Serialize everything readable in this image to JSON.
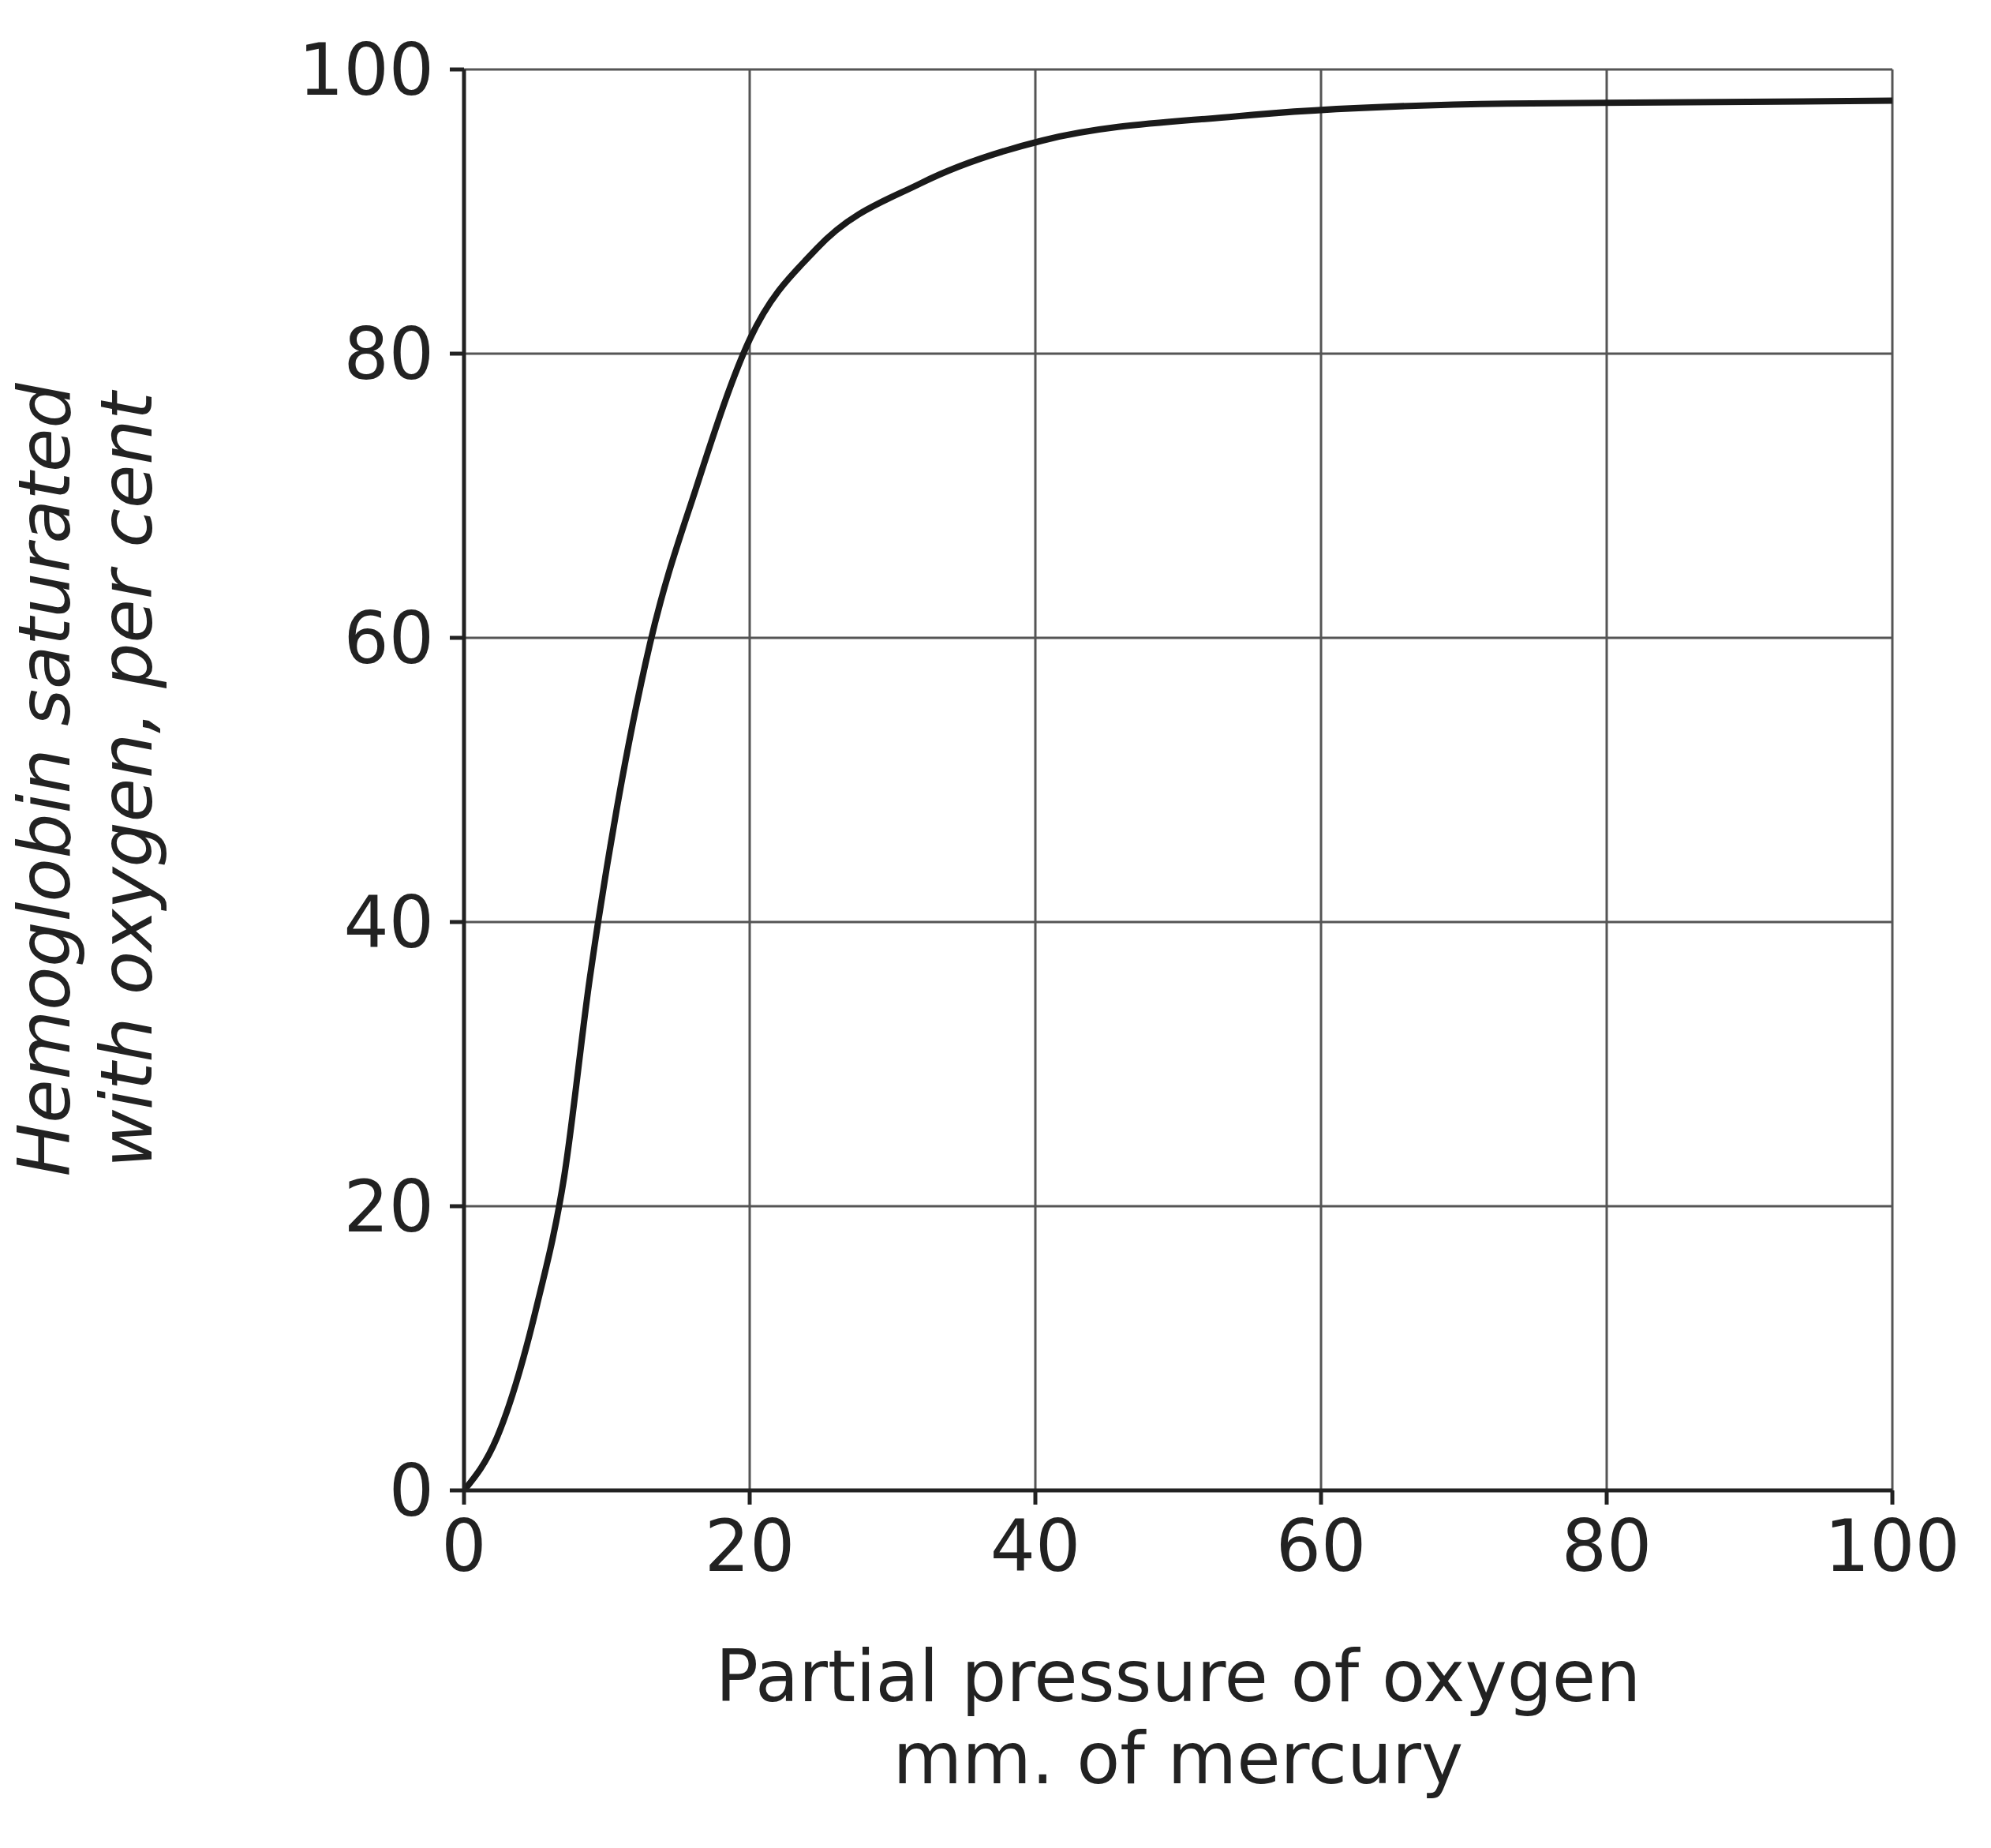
{
  "chart_data": {
    "type": "line",
    "xlabel": "Partial pressure of oxygen\nmm. of mercury",
    "ylabel": "Hemoglobin saturated\nwith oxygen, per cent",
    "x": [
      0,
      2.3,
      5.1,
      7,
      8.8,
      10.7,
      13,
      16.3,
      20,
      24.7,
      32,
      40.5,
      54,
      73,
      100
    ],
    "series": [
      {
        "color": "#1a1a1a",
        "values": [
          0,
          3.7,
          13,
          22,
          36,
          48,
          59.5,
          70.7,
          81,
          87.4,
          92,
          95,
          96.7,
          97.6,
          97.8
        ]
      }
    ],
    "xlim": [
      0,
      100
    ],
    "ylim": [
      0,
      100
    ],
    "xticks": [
      0,
      20,
      40,
      60,
      80,
      100
    ],
    "yticks": [
      0,
      20,
      40,
      60,
      80,
      100
    ],
    "grid": true,
    "marker": "none",
    "line_style": "solid"
  }
}
